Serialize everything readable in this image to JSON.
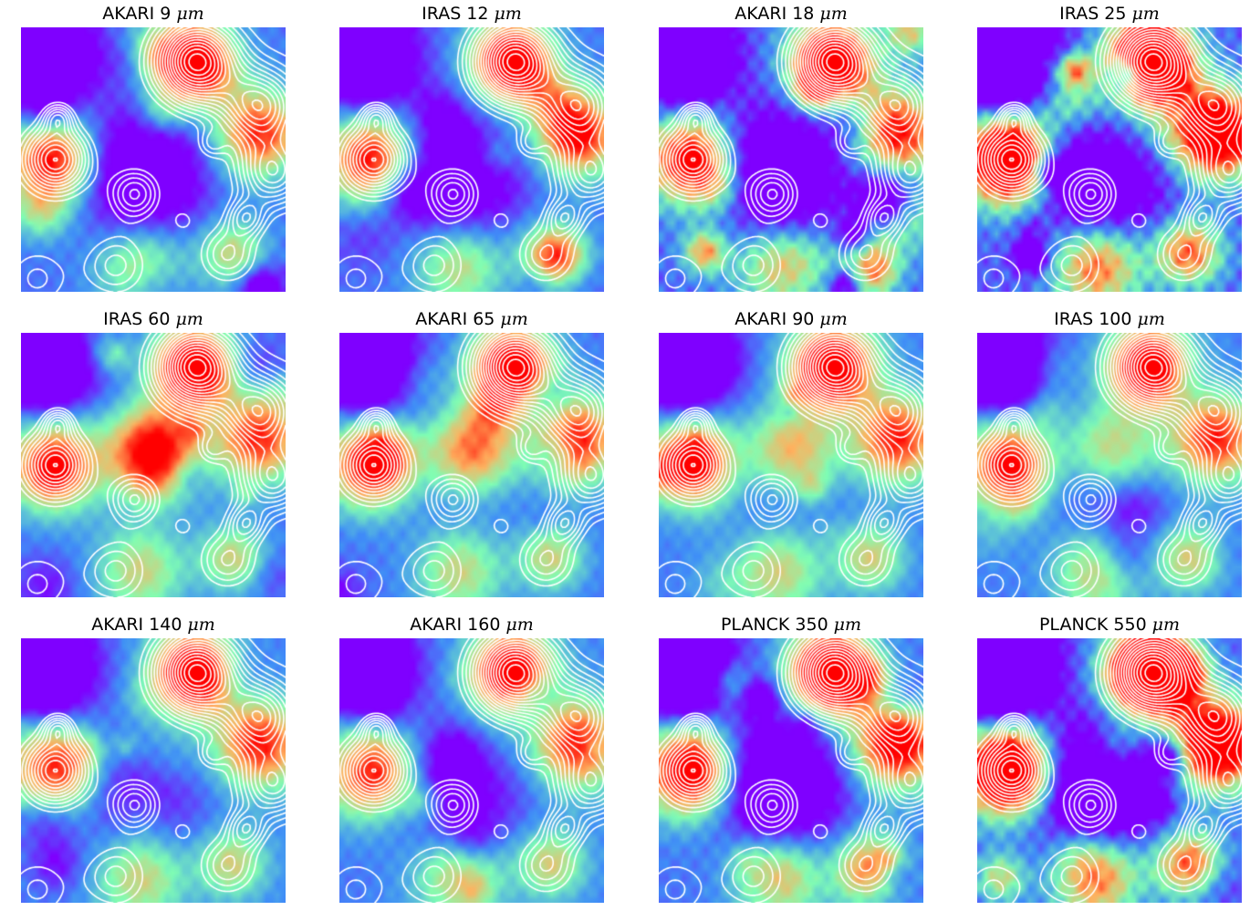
{
  "figure": {
    "panels": [
      {
        "instrument": "AKARI",
        "wavelength": "9",
        "unit": "μm"
      },
      {
        "instrument": "IRAS",
        "wavelength": "12",
        "unit": "μm"
      },
      {
        "instrument": "AKARI",
        "wavelength": "18",
        "unit": "μm"
      },
      {
        "instrument": "IRAS",
        "wavelength": "25",
        "unit": "μm"
      },
      {
        "instrument": "IRAS",
        "wavelength": "60",
        "unit": "μm"
      },
      {
        "instrument": "AKARI",
        "wavelength": "65",
        "unit": "μm"
      },
      {
        "instrument": "AKARI",
        "wavelength": "90",
        "unit": "μm"
      },
      {
        "instrument": "IRAS",
        "wavelength": "100",
        "unit": "μm"
      },
      {
        "instrument": "AKARI",
        "wavelength": "140",
        "unit": "μm"
      },
      {
        "instrument": "AKARI",
        "wavelength": "160",
        "unit": "μm"
      },
      {
        "instrument": "PLANCK",
        "wavelength": "350",
        "unit": "μm"
      },
      {
        "instrument": "PLANCK",
        "wavelength": "550",
        "unit": "μm"
      }
    ],
    "colors": {
      "colormap": [
        "#7f00ff",
        "#3f8ef8",
        "#80ffb4",
        "#ffb360",
        "#ff0000"
      ],
      "contour_color": "#ffffff"
    }
  }
}
